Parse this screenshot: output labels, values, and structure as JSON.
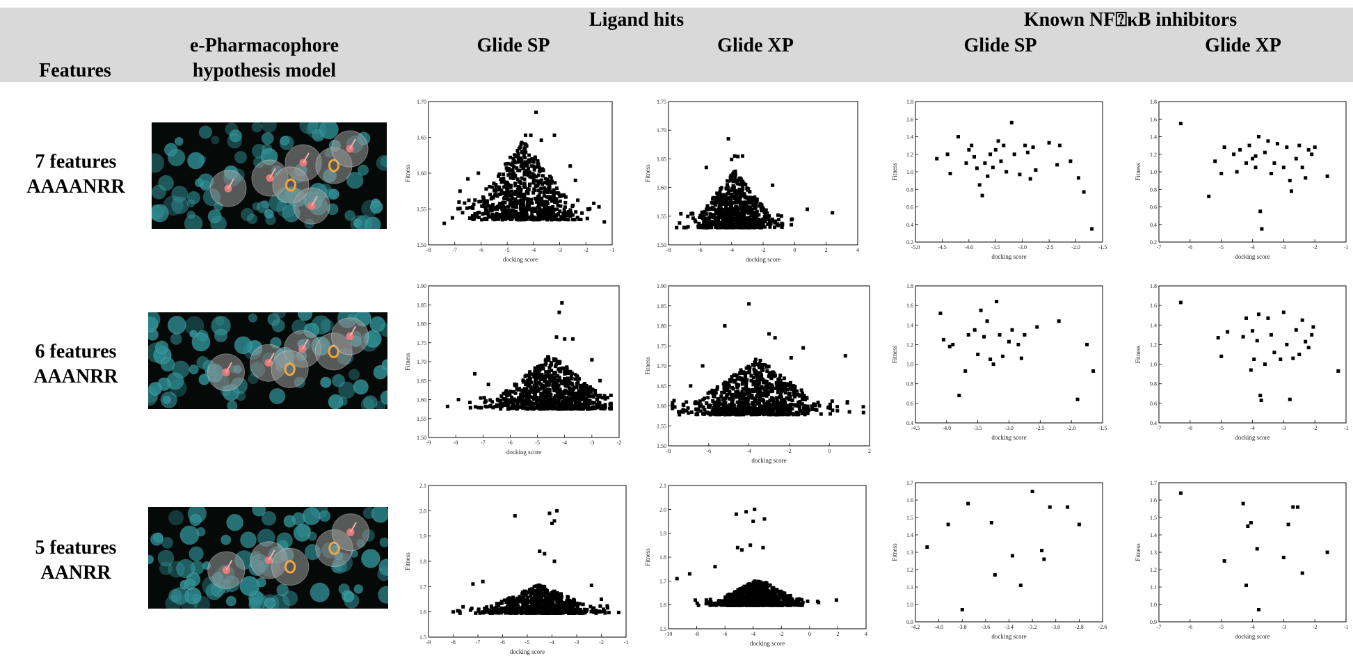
{
  "header": {
    "features": "Features",
    "model": [
      "e-Pharmacophore",
      "hypothesis model"
    ],
    "group_ligand": "Ligand hits",
    "group_known": "Known NF⍰κB inhibitors",
    "sub_sp": "Glide SP",
    "sub_xp": "Glide XP"
  },
  "rows": [
    {
      "line1": "7 features",
      "line2": "AAAANRR",
      "spheres": 7
    },
    {
      "line1": "6 features",
      "line2": "AAANRR",
      "spheres": 6
    },
    {
      "line1": "5 features",
      "line2": "AANRR",
      "spheres": 5
    }
  ],
  "colors": {
    "header_band": "#d9d9d9",
    "marker": "#000000",
    "pharm_bg": "#050908",
    "pharm_dot": "#2e8f95",
    "sphere": "#9a9a9a",
    "acceptor": "#e67a7a",
    "ring": "#f4a640"
  },
  "chart_data": [
    {
      "id": "r1c1",
      "type": "scatter",
      "xlabel": "docking score",
      "ylabel": "Fitness",
      "xlim": [
        -8,
        -1
      ],
      "ylim": [
        1.5,
        1.7
      ],
      "xticks": [
        -8,
        -7,
        -6,
        -5,
        -4,
        -3,
        -2,
        -1
      ],
      "yticks": [
        1.5,
        1.55,
        1.6,
        1.65,
        1.7
      ],
      "cloud": {
        "n": 700,
        "cx": -4.4,
        "sx": 0.9,
        "ymin": 1.535,
        "ymax": 1.645
      },
      "points": [
        [
          -7.4,
          1.53
        ],
        [
          -3.9,
          1.685
        ],
        [
          -4.3,
          1.653
        ],
        [
          -4.1,
          1.653
        ],
        [
          -3.2,
          1.653
        ],
        [
          -3.7,
          1.646
        ],
        [
          -1.7,
          1.558
        ],
        [
          -1.5,
          1.553
        ],
        [
          -1.3,
          1.532
        ],
        [
          -6.8,
          1.575
        ],
        [
          -6.5,
          1.592
        ],
        [
          -6.1,
          1.6
        ],
        [
          -2.6,
          1.61
        ],
        [
          -2.4,
          1.59
        ]
      ]
    },
    {
      "id": "r1c2",
      "type": "scatter",
      "xlabel": "docking score",
      "ylabel": "Fitness",
      "xlim": [
        -8,
        4
      ],
      "ylim": [
        1.5,
        1.75
      ],
      "xticks": [
        -8,
        -6,
        -4,
        -2,
        0,
        2,
        4
      ],
      "yticks": [
        1.5,
        1.55,
        1.6,
        1.65,
        1.7,
        1.75
      ],
      "cloud": {
        "n": 750,
        "cx": -3.8,
        "sx": 1.1,
        "ymin": 1.53,
        "ymax": 1.63
      },
      "points": [
        [
          -4.2,
          1.685
        ],
        [
          -3.8,
          1.655
        ],
        [
          -3.6,
          1.654
        ],
        [
          -3.3,
          1.655
        ],
        [
          -4.0,
          1.649
        ],
        [
          2.4,
          1.556
        ],
        [
          0.8,
          1.562
        ],
        [
          -7.3,
          1.538
        ],
        [
          -6.9,
          1.53
        ],
        [
          -6.5,
          1.555
        ],
        [
          -5.6,
          1.635
        ],
        [
          -1.4,
          1.604
        ]
      ]
    },
    {
      "id": "r1c3",
      "type": "scatter",
      "xlabel": "docking score",
      "ylabel": "Fitness",
      "xlim": [
        -5.0,
        -1.5
      ],
      "ylim": [
        0.2,
        1.8
      ],
      "xticks": [
        -5.0,
        -4.5,
        -4.0,
        -3.5,
        -3.0,
        -2.5,
        -2.0,
        -1.5
      ],
      "yticks": [
        0.2,
        0.4,
        0.6,
        0.8,
        1.0,
        1.2,
        1.4,
        1.6,
        1.8
      ],
      "points": [
        [
          -4.6,
          1.15
        ],
        [
          -4.4,
          1.2
        ],
        [
          -4.2,
          1.4
        ],
        [
          -4.35,
          0.98
        ],
        [
          -4.05,
          1.1
        ],
        [
          -3.95,
          1.3
        ],
        [
          -3.9,
          1.17
        ],
        [
          -3.85,
          1.04
        ],
        [
          -3.8,
          0.85
        ],
        [
          -3.75,
          0.73
        ],
        [
          -3.7,
          1.1
        ],
        [
          -3.6,
          1.2
        ],
        [
          -3.55,
          1.05
        ],
        [
          -3.5,
          1.25
        ],
        [
          -3.45,
          1.35
        ],
        [
          -3.4,
          1.12
        ],
        [
          -3.3,
          1.0
        ],
        [
          -3.2,
          1.56
        ],
        [
          -3.15,
          1.2
        ],
        [
          -3.05,
          0.97
        ],
        [
          -2.95,
          1.3
        ],
        [
          -2.9,
          1.22
        ],
        [
          -2.85,
          0.92
        ],
        [
          -2.8,
          1.28
        ],
        [
          -2.75,
          1.02
        ],
        [
          -2.5,
          1.33
        ],
        [
          -2.35,
          1.08
        ],
        [
          -2.3,
          1.3
        ],
        [
          -2.1,
          1.12
        ],
        [
          -1.95,
          0.93
        ],
        [
          -1.85,
          0.77
        ],
        [
          -1.7,
          0.35
        ],
        [
          -3.65,
          0.95
        ],
        [
          -4.0,
          1.25
        ],
        [
          -3.35,
          1.3
        ]
      ]
    },
    {
      "id": "r1c4",
      "type": "scatter",
      "xlabel": "docking score",
      "ylabel": "Fitness",
      "xlim": [
        -7,
        -1
      ],
      "ylim": [
        0.2,
        1.8
      ],
      "xticks": [
        -7,
        -6,
        -5,
        -4,
        -3,
        -2,
        -1
      ],
      "yticks": [
        0.2,
        0.4,
        0.6,
        0.8,
        1.0,
        1.2,
        1.4,
        1.6,
        1.8
      ],
      "points": [
        [
          -6.3,
          1.55
        ],
        [
          -5.4,
          0.72
        ],
        [
          -5.2,
          1.12
        ],
        [
          -5.0,
          0.98
        ],
        [
          -4.9,
          1.28
        ],
        [
          -4.6,
          1.2
        ],
        [
          -4.4,
          1.25
        ],
        [
          -4.2,
          1.1
        ],
        [
          -4.1,
          1.3
        ],
        [
          -4.0,
          1.15
        ],
        [
          -3.9,
          1.05
        ],
        [
          -3.8,
          1.4
        ],
        [
          -3.75,
          0.55
        ],
        [
          -3.7,
          0.35
        ],
        [
          -3.6,
          1.22
        ],
        [
          -3.5,
          1.35
        ],
        [
          -3.4,
          0.98
        ],
        [
          -3.2,
          1.32
        ],
        [
          -3.0,
          1.05
        ],
        [
          -2.9,
          1.28
        ],
        [
          -2.8,
          0.9
        ],
        [
          -2.75,
          0.78
        ],
        [
          -2.6,
          1.15
        ],
        [
          -2.5,
          1.3
        ],
        [
          -2.4,
          1.05
        ],
        [
          -2.3,
          0.93
        ],
        [
          -2.2,
          1.25
        ],
        [
          -2.0,
          1.28
        ],
        [
          -1.6,
          0.95
        ],
        [
          -3.3,
          1.1
        ],
        [
          -4.5,
          1.0
        ],
        [
          -3.9,
          1.18
        ],
        [
          -2.1,
          1.2
        ]
      ]
    },
    {
      "id": "r2c1",
      "type": "scatter",
      "xlabel": "docking score",
      "ylabel": "Fitness",
      "xlim": [
        -9,
        -2
      ],
      "ylim": [
        1.5,
        1.9
      ],
      "xticks": [
        -9,
        -8,
        -7,
        -6,
        -5,
        -4,
        -3,
        -2
      ],
      "yticks": [
        1.5,
        1.55,
        1.6,
        1.65,
        1.7,
        1.75,
        1.8,
        1.85,
        1.9
      ],
      "cloud": {
        "n": 750,
        "cx": -4.5,
        "sx": 0.95,
        "ymin": 1.575,
        "ymax": 1.72
      },
      "points": [
        [
          -4.1,
          1.855
        ],
        [
          -4.2,
          1.83
        ],
        [
          -4.3,
          1.765
        ],
        [
          -4.0,
          1.76
        ],
        [
          -3.7,
          1.76
        ],
        [
          -8.3,
          1.582
        ],
        [
          -7.9,
          1.6
        ],
        [
          -7.3,
          1.668
        ],
        [
          -6.8,
          1.64
        ],
        [
          -3.0,
          1.705
        ],
        [
          -2.7,
          1.65
        ],
        [
          -2.6,
          1.605
        ]
      ]
    },
    {
      "id": "r2c2",
      "type": "scatter",
      "xlabel": "docking score",
      "ylabel": "Fitness",
      "xlim": [
        -8,
        2
      ],
      "ylim": [
        1.5,
        1.9
      ],
      "xticks": [
        -8,
        -6,
        -4,
        -2,
        0,
        2
      ],
      "yticks": [
        1.5,
        1.55,
        1.6,
        1.65,
        1.7,
        1.75,
        1.8,
        1.85,
        1.9
      ],
      "cloud": {
        "n": 850,
        "cx": -3.6,
        "sx": 1.5,
        "ymin": 1.578,
        "ymax": 1.72
      },
      "points": [
        [
          -4.0,
          1.855
        ],
        [
          -3.0,
          1.78
        ],
        [
          -2.7,
          1.77
        ],
        [
          -5.2,
          1.8
        ],
        [
          -1.9,
          1.72
        ],
        [
          0.8,
          1.725
        ],
        [
          0.9,
          1.61
        ],
        [
          1.0,
          1.585
        ],
        [
          -7.5,
          1.585
        ],
        [
          -6.9,
          1.65
        ],
        [
          -6.3,
          1.7
        ],
        [
          -1.3,
          1.745
        ]
      ]
    },
    {
      "id": "r2c3",
      "type": "scatter",
      "xlabel": "docking score",
      "ylabel": "Fitness",
      "xlim": [
        -4.5,
        -1.5
      ],
      "ylim": [
        0.4,
        1.8
      ],
      "xticks": [
        -4.5,
        -4.0,
        -3.5,
        -3.0,
        -2.5,
        -2.0,
        -1.5
      ],
      "yticks": [
        0.4,
        0.6,
        0.8,
        1.0,
        1.2,
        1.4,
        1.6,
        1.8
      ],
      "points": [
        [
          -4.1,
          1.52
        ],
        [
          -4.05,
          1.25
        ],
        [
          -3.95,
          1.18
        ],
        [
          -3.9,
          1.2
        ],
        [
          -3.8,
          0.68
        ],
        [
          -3.7,
          0.93
        ],
        [
          -3.65,
          1.3
        ],
        [
          -3.55,
          1.35
        ],
        [
          -3.5,
          1.1
        ],
        [
          -3.4,
          1.28
        ],
        [
          -3.35,
          1.44
        ],
        [
          -3.3,
          1.05
        ],
        [
          -3.25,
          1.0
        ],
        [
          -3.2,
          1.64
        ],
        [
          -3.1,
          1.08
        ],
        [
          -3.0,
          1.23
        ],
        [
          -2.95,
          1.35
        ],
        [
          -2.85,
          1.2
        ],
        [
          -2.8,
          1.06
        ],
        [
          -2.75,
          1.3
        ],
        [
          -2.55,
          1.38
        ],
        [
          -2.2,
          1.44
        ],
        [
          -1.9,
          0.64
        ],
        [
          -1.75,
          1.2
        ],
        [
          -1.65,
          0.93
        ],
        [
          -3.45,
          1.55
        ],
        [
          -3.15,
          1.3
        ]
      ]
    },
    {
      "id": "r2c4",
      "type": "scatter",
      "xlabel": "docking score",
      "ylabel": "Fitness",
      "xlim": [
        -7,
        -1
      ],
      "ylim": [
        0.4,
        1.8
      ],
      "xticks": [
        -7,
        -6,
        -5,
        -4,
        -3,
        -2,
        -1
      ],
      "yticks": [
        0.4,
        0.6,
        0.8,
        1.0,
        1.2,
        1.4,
        1.6,
        1.8
      ],
      "points": [
        [
          -6.3,
          1.63
        ],
        [
          -5.1,
          1.27
        ],
        [
          -5.0,
          1.08
        ],
        [
          -4.8,
          1.33
        ],
        [
          -4.3,
          1.28
        ],
        [
          -4.2,
          1.47
        ],
        [
          -4.05,
          0.94
        ],
        [
          -4.0,
          1.34
        ],
        [
          -3.95,
          1.05
        ],
        [
          -3.85,
          1.24
        ],
        [
          -3.75,
          0.68
        ],
        [
          -3.72,
          0.63
        ],
        [
          -3.6,
          1.0
        ],
        [
          -3.5,
          1.47
        ],
        [
          -3.4,
          1.3
        ],
        [
          -3.3,
          1.12
        ],
        [
          -3.1,
          1.05
        ],
        [
          -3.0,
          1.53
        ],
        [
          -2.9,
          1.2
        ],
        [
          -2.8,
          0.64
        ],
        [
          -2.7,
          1.06
        ],
        [
          -2.6,
          1.35
        ],
        [
          -2.5,
          1.1
        ],
        [
          -2.4,
          1.45
        ],
        [
          -2.2,
          1.17
        ],
        [
          -2.1,
          1.3
        ],
        [
          -2.05,
          1.38
        ],
        [
          -1.25,
          0.93
        ],
        [
          -3.8,
          1.51
        ],
        [
          -2.3,
          1.23
        ]
      ]
    },
    {
      "id": "r3c1",
      "type": "scatter",
      "xlabel": "docking score",
      "ylabel": "Fitness",
      "xlim": [
        -9,
        -1
      ],
      "ylim": [
        1.5,
        2.1
      ],
      "xticks": [
        -9,
        -8,
        -7,
        -6,
        -5,
        -4,
        -3,
        -2,
        -1
      ],
      "yticks": [
        1.5,
        1.6,
        1.7,
        1.8,
        1.9,
        2.0,
        2.1
      ],
      "cloud": {
        "n": 750,
        "cx": -4.5,
        "sx": 1.0,
        "ymin": 1.595,
        "ymax": 1.71
      },
      "points": [
        [
          -5.5,
          1.98
        ],
        [
          -4.1,
          1.99
        ],
        [
          -3.8,
          2.0
        ],
        [
          -3.9,
          1.96
        ],
        [
          -4.0,
          1.95
        ],
        [
          -4.5,
          1.84
        ],
        [
          -4.3,
          1.83
        ],
        [
          -3.9,
          1.8
        ],
        [
          -8.0,
          1.6
        ],
        [
          -7.6,
          1.62
        ],
        [
          -7.2,
          1.71
        ],
        [
          -6.8,
          1.72
        ],
        [
          -2.4,
          1.705
        ],
        [
          -2.0,
          1.65
        ]
      ]
    },
    {
      "id": "r3c2",
      "type": "scatter",
      "xlabel": "docking score",
      "ylabel": "Fitness",
      "xlim": [
        -10,
        4
      ],
      "ylim": [
        1.5,
        2.1
      ],
      "xticks": [
        -10,
        -8,
        -6,
        -4,
        -2,
        0,
        2,
        4
      ],
      "yticks": [
        1.5,
        1.6,
        1.7,
        1.8,
        1.9,
        2.0,
        2.1
      ],
      "cloud": {
        "n": 750,
        "cx": -3.6,
        "sx": 1.4,
        "ymin": 1.598,
        "ymax": 1.71
      },
      "points": [
        [
          -5.2,
          1.98
        ],
        [
          -4.5,
          1.99
        ],
        [
          -3.9,
          2.0
        ],
        [
          -3.2,
          1.96
        ],
        [
          -4.0,
          1.95
        ],
        [
          -5.1,
          1.84
        ],
        [
          -4.2,
          1.85
        ],
        [
          -3.3,
          1.84
        ],
        [
          -4.8,
          1.83
        ],
        [
          1.9,
          1.62
        ],
        [
          -9.4,
          1.71
        ],
        [
          -8.5,
          1.73
        ],
        [
          -6.7,
          1.76
        ],
        [
          -8.1,
          1.62
        ]
      ]
    },
    {
      "id": "r3c3",
      "type": "scatter",
      "xlabel": "docking score",
      "ylabel": "Fitness",
      "xlim": [
        -4.2,
        -2.6
      ],
      "ylim": [
        0.9,
        1.7
      ],
      "xticks": [
        -4.2,
        -4.0,
        -3.8,
        -3.6,
        -3.4,
        -3.2,
        -3.0,
        -2.8,
        -2.6
      ],
      "yticks": [
        0.9,
        1.0,
        1.1,
        1.2,
        1.3,
        1.4,
        1.5,
        1.6,
        1.7
      ],
      "points": [
        [
          -4.1,
          1.33
        ],
        [
          -3.92,
          1.46
        ],
        [
          -3.8,
          0.97
        ],
        [
          -3.75,
          1.58
        ],
        [
          -3.55,
          1.47
        ],
        [
          -3.52,
          1.17
        ],
        [
          -3.37,
          1.28
        ],
        [
          -3.3,
          1.11
        ],
        [
          -3.2,
          1.65
        ],
        [
          -3.12,
          1.31
        ],
        [
          -3.1,
          1.26
        ],
        [
          -3.05,
          1.56
        ],
        [
          -2.9,
          1.56
        ],
        [
          -2.8,
          1.46
        ]
      ]
    },
    {
      "id": "r3c4",
      "type": "scatter",
      "xlabel": "docking score",
      "ylabel": "Fitness",
      "xlim": [
        -7,
        -1
      ],
      "ylim": [
        0.9,
        1.7
      ],
      "xticks": [
        -7,
        -6,
        -5,
        -4,
        -3,
        -2,
        -1
      ],
      "yticks": [
        0.9,
        1.0,
        1.1,
        1.2,
        1.3,
        1.4,
        1.5,
        1.6,
        1.7
      ],
      "points": [
        [
          -6.3,
          1.64
        ],
        [
          -4.9,
          1.25
        ],
        [
          -4.3,
          1.58
        ],
        [
          -4.15,
          1.45
        ],
        [
          -4.05,
          1.47
        ],
        [
          -4.2,
          1.11
        ],
        [
          -3.85,
          1.32
        ],
        [
          -3.8,
          0.97
        ],
        [
          -3.0,
          1.27
        ],
        [
          -2.85,
          1.46
        ],
        [
          -2.7,
          1.56
        ],
        [
          -2.55,
          1.56
        ],
        [
          -2.4,
          1.18
        ],
        [
          -1.6,
          1.3
        ]
      ]
    }
  ]
}
